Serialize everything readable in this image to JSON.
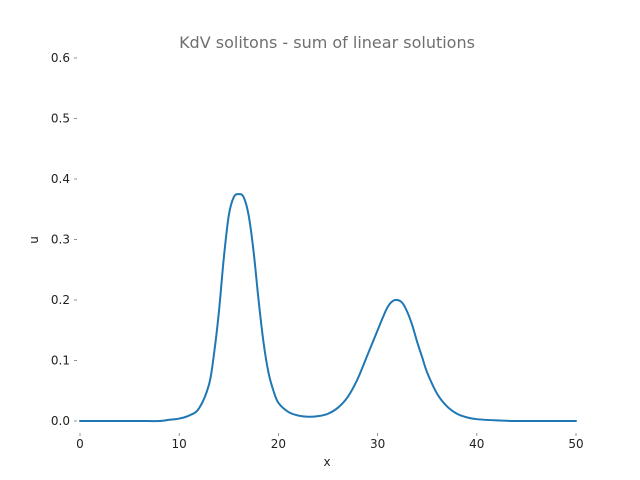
{
  "chart_data": {
    "type": "line",
    "title": "KdV solitons - sum of linear solutions",
    "xlabel": "x",
    "ylabel": "u",
    "xlim": [
      0,
      50
    ],
    "ylim": [
      0,
      0.6
    ],
    "xticks": [
      "0",
      "10",
      "20",
      "30",
      "40",
      "50"
    ],
    "yticks": [
      "0.0",
      "0.1",
      "0.2",
      "0.3",
      "0.4",
      "0.5",
      "0.6"
    ],
    "grid": false,
    "legend": "none",
    "line_color": "#1f77b4",
    "series": [
      {
        "x": [
          0,
          2,
          4,
          6,
          8,
          9,
          10,
          11,
          12,
          13,
          13.5,
          14,
          14.5,
          15,
          15.5,
          16,
          16.5,
          17,
          17.5,
          18,
          18.5,
          19,
          19.5,
          20,
          21,
          22,
          23,
          24,
          25,
          26,
          27,
          28,
          29,
          30,
          30.5,
          31,
          31.5,
          32,
          32.5,
          33,
          33.5,
          34,
          34.5,
          35,
          36,
          37,
          38,
          39,
          40,
          42,
          44,
          46,
          48,
          50
        ],
        "y": [
          0.0,
          0.0,
          0.0,
          0.0,
          0.0,
          0.002,
          0.004,
          0.009,
          0.021,
          0.06,
          0.11,
          0.18,
          0.27,
          0.34,
          0.37,
          0.375,
          0.37,
          0.34,
          0.28,
          0.2,
          0.13,
          0.08,
          0.05,
          0.03,
          0.015,
          0.009,
          0.007,
          0.008,
          0.012,
          0.022,
          0.04,
          0.07,
          0.11,
          0.15,
          0.17,
          0.188,
          0.198,
          0.2,
          0.195,
          0.18,
          0.158,
          0.13,
          0.105,
          0.08,
          0.045,
          0.024,
          0.012,
          0.006,
          0.003,
          0.001,
          0.0,
          0.0,
          0.0,
          0.0
        ]
      }
    ]
  }
}
